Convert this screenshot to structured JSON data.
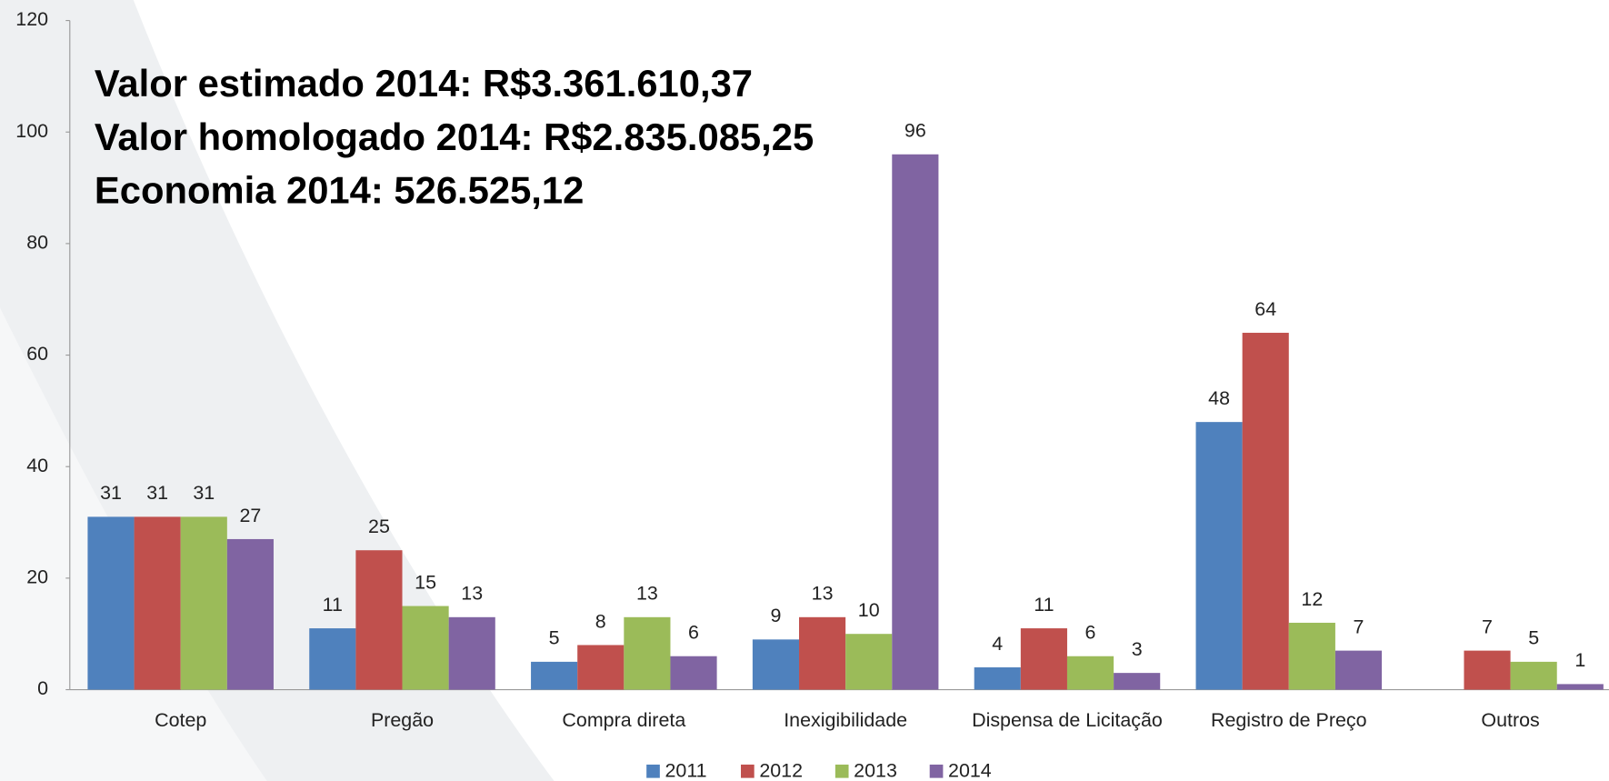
{
  "chart_data": {
    "type": "bar",
    "annotations": [
      "Valor estimado 2014: R$3.361.610,37",
      "Valor homologado 2014: R$2.835.085,25",
      "Economia 2014: 526.525,12"
    ],
    "categories": [
      "Cotep",
      "Pregão",
      "Compra direta",
      "Inexigibilidade",
      "Dispensa de Licitação",
      "Registro de Preço",
      "Outros"
    ],
    "series": [
      {
        "name": "2011",
        "color": "#4f81bd",
        "values": [
          31,
          11,
          5,
          9,
          4,
          48,
          null
        ]
      },
      {
        "name": "2012",
        "color": "#c0504d",
        "values": [
          31,
          25,
          8,
          13,
          11,
          64,
          7
        ]
      },
      {
        "name": "2013",
        "color": "#9bbb59",
        "values": [
          31,
          15,
          13,
          10,
          6,
          12,
          5
        ]
      },
      {
        "name": "2014",
        "color": "#8064a2",
        "values": [
          27,
          13,
          6,
          96,
          3,
          7,
          1
        ]
      }
    ],
    "ylim": [
      0,
      120
    ],
    "yticks": [
      0,
      20,
      40,
      60,
      80,
      100,
      120
    ],
    "legend": "bottom"
  }
}
